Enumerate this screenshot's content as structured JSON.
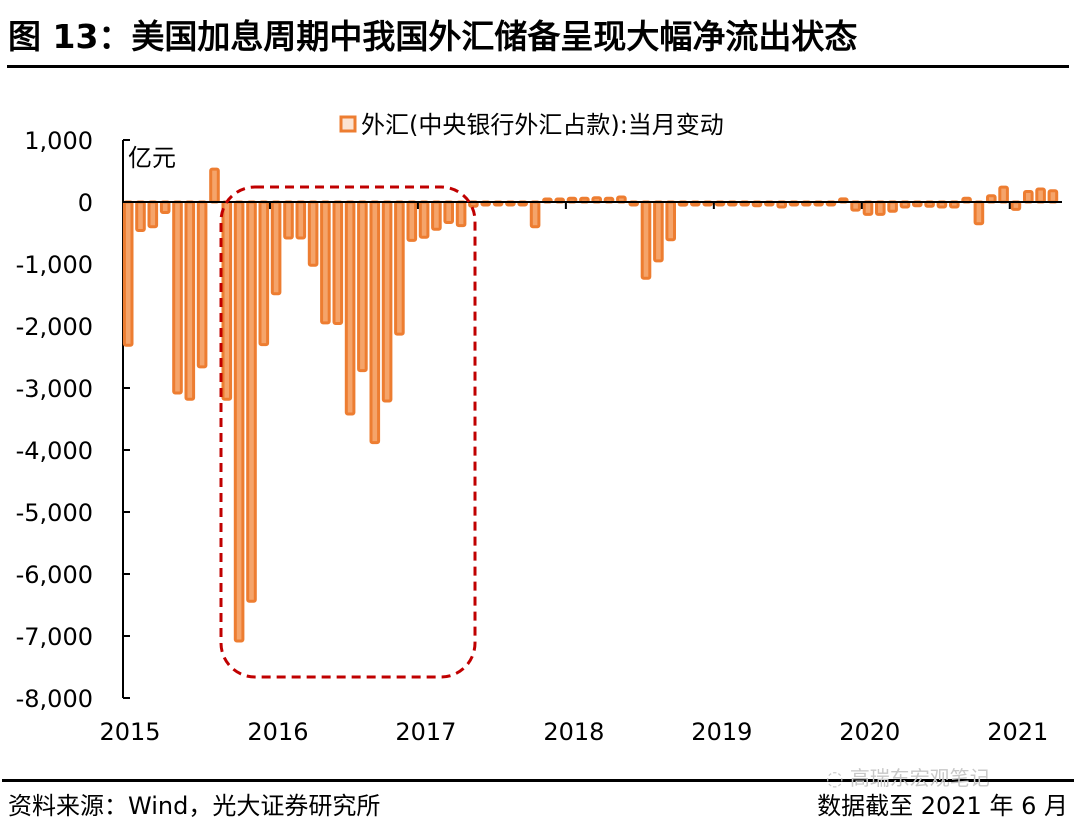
{
  "header": {
    "title": "图 13：美国加息周期中我国外汇储备呈现大幅净流出状态"
  },
  "footer": {
    "source": "资料来源：Wind，光大证券研究所",
    "data_as_of": "数据截至 2021 年 6 月",
    "watermark": "高瑞东宏观笔记"
  },
  "colors": {
    "bar_fill": "#F5A46A",
    "bar_stroke": "#ED7D31",
    "highlight_box": "#C00000",
    "axis": "#000000"
  },
  "chart_data": {
    "type": "bar",
    "title": "",
    "legend": [
      "外汇(中央银行外汇占款):当月变动"
    ],
    "legend_position": "top-center",
    "ylabel": "亿元",
    "xlabel": "",
    "ylim": [
      -8000,
      1000
    ],
    "yticks": [
      1000,
      0,
      -1000,
      -2000,
      -3000,
      -4000,
      -5000,
      -6000,
      -7000,
      -8000
    ],
    "ytick_labels": [
      "1,000",
      "0",
      "-1,000",
      "-2,000",
      "-3,000",
      "-4,000",
      "-5,000",
      "-6,000",
      "-7,000",
      "-8,000"
    ],
    "xtick_labels": [
      "2015",
      "2016",
      "2017",
      "2018",
      "2019",
      "2020",
      "2021"
    ],
    "grid": false,
    "annotation": "dashed rounded box highlighting late 2015 through early 2017",
    "highlight_range": [
      "2015-08",
      "2017-03"
    ],
    "series": [
      {
        "name": "外汇(中央银行外汇占款):当月变动",
        "x": [
          "2015-01",
          "2015-02",
          "2015-03",
          "2015-04",
          "2015-05",
          "2015-06",
          "2015-07",
          "2015-08",
          "2015-09",
          "2015-10",
          "2015-11",
          "2015-12",
          "2016-01",
          "2016-02",
          "2016-03",
          "2016-04",
          "2016-05",
          "2016-06",
          "2016-07",
          "2016-08",
          "2016-09",
          "2016-10",
          "2016-11",
          "2016-12",
          "2017-01",
          "2017-02",
          "2017-03",
          "2017-04",
          "2017-05",
          "2017-06",
          "2017-07",
          "2017-08",
          "2017-09",
          "2017-10",
          "2017-11",
          "2017-12",
          "2018-01",
          "2018-02",
          "2018-03",
          "2018-04",
          "2018-05",
          "2018-06",
          "2018-07",
          "2018-08",
          "2018-09",
          "2018-10",
          "2018-11",
          "2018-12",
          "2019-01",
          "2019-02",
          "2019-03",
          "2019-04",
          "2019-05",
          "2019-06",
          "2019-07",
          "2019-08",
          "2019-09",
          "2019-10",
          "2019-11",
          "2019-12",
          "2020-01",
          "2020-02",
          "2020-03",
          "2020-04",
          "2020-05",
          "2020-06",
          "2020-07",
          "2020-08",
          "2020-09",
          "2020-10",
          "2020-11",
          "2020-12",
          "2021-01",
          "2021-02",
          "2021-03",
          "2021-04"
        ],
        "values": [
          -2310,
          -460,
          -400,
          -170,
          -3080,
          -3180,
          -2660,
          530,
          -3180,
          -7080,
          -6440,
          -2300,
          -1480,
          -580,
          -580,
          -1020,
          -1950,
          -1960,
          -3420,
          -2720,
          -3880,
          -3210,
          -2130,
          -620,
          -570,
          -440,
          -330,
          -380,
          -70,
          -30,
          -20,
          -20,
          -20,
          -400,
          30,
          40,
          60,
          60,
          70,
          60,
          80,
          -20,
          -1230,
          -950,
          -610,
          -50,
          -30,
          -30,
          -10,
          -10,
          -10,
          -60,
          -20,
          -80,
          -20,
          -20,
          -20,
          -20,
          50,
          -130,
          -200,
          -200,
          -150,
          -80,
          -60,
          -70,
          -80,
          -80,
          60,
          -350,
          100,
          240,
          -120,
          170,
          210,
          180
        ]
      }
    ]
  }
}
